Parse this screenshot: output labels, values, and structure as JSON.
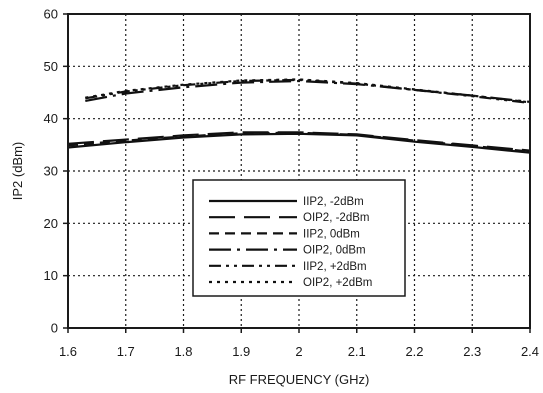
{
  "chart_data": {
    "type": "line",
    "xlabel": "RF FREQUENCY (GHz)",
    "ylabel": "IP2 (dBm)",
    "xlim": [
      1.6,
      2.4
    ],
    "ylim": [
      0,
      60
    ],
    "x_ticks": [
      "1.6",
      "1.7",
      "1.8",
      "1.9",
      "2",
      "2.1",
      "2.2",
      "2.3",
      "2.4"
    ],
    "y_ticks": [
      "0",
      "10",
      "20",
      "30",
      "40",
      "50",
      "60"
    ],
    "grid": true,
    "legend_position": "lower-center",
    "series": [
      {
        "name": "IIP2, -2dBm",
        "style": "solid",
        "x": [
          1.6,
          1.7,
          1.8,
          1.9,
          2.0,
          2.1,
          2.2,
          2.3,
          2.4
        ],
        "y": [
          34.5,
          35.5,
          36.4,
          37.0,
          37.1,
          36.8,
          35.6,
          34.6,
          33.5
        ]
      },
      {
        "name": "OIP2, -2dBm",
        "style": "long-dash",
        "x": [
          1.6,
          1.7,
          1.8,
          1.9,
          2.0,
          2.1,
          2.2,
          2.3,
          2.4
        ],
        "y": [
          35.2,
          36.0,
          36.8,
          37.4,
          37.4,
          37.0,
          35.9,
          34.9,
          33.9
        ]
      },
      {
        "name": "IIP2, 0dBm",
        "style": "dash",
        "x": [
          1.6,
          1.7,
          1.8,
          1.9,
          2.0,
          2.1,
          2.2,
          2.3,
          2.4
        ],
        "y": [
          34.9,
          35.8,
          36.6,
          37.2,
          37.3,
          36.9,
          35.8,
          34.8,
          33.7
        ]
      },
      {
        "name": "OIP2, 0dBm",
        "style": "dash-dot",
        "x": [
          1.63,
          1.7,
          1.8,
          1.9,
          2.0,
          2.1,
          2.2,
          2.3,
          2.4
        ],
        "y": [
          43.4,
          44.8,
          46.0,
          46.9,
          47.2,
          46.6,
          45.5,
          44.4,
          43.2
        ]
      },
      {
        "name": "IIP2, +2dBm",
        "style": "dash-dot-dot",
        "x": [
          1.63,
          1.7,
          1.8,
          1.9,
          2.0,
          2.1,
          2.2,
          2.3,
          2.4
        ],
        "y": [
          43.9,
          45.2,
          46.4,
          47.2,
          47.4,
          46.7,
          45.5,
          44.3,
          43.0
        ]
      },
      {
        "name": "OIP2, +2dBm",
        "style": "dotted",
        "x": [
          1.63,
          1.7,
          1.8,
          1.9,
          2.0,
          2.1,
          2.2,
          2.3,
          2.4
        ],
        "y": [
          44.0,
          45.3,
          46.5,
          47.3,
          47.5,
          46.8,
          45.6,
          44.4,
          43.1
        ]
      }
    ]
  }
}
